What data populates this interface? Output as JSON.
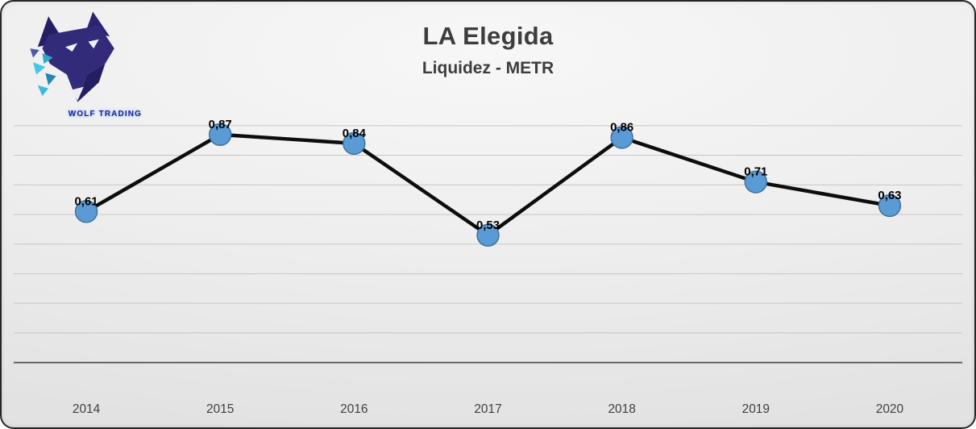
{
  "logo": {
    "brand": "WOLF TRADING"
  },
  "chart_data": {
    "type": "line",
    "title": "LA Elegida",
    "subtitle": "Liquidez - METR",
    "categories": [
      "2014",
      "2015",
      "2016",
      "2017",
      "2018",
      "2019",
      "2020"
    ],
    "series": [
      {
        "name": "Liquidez - METR",
        "values": [
          0.61,
          0.87,
          0.84,
          0.53,
          0.86,
          0.71,
          0.63
        ],
        "point_labels": [
          "0,61",
          "0,87",
          "0,84",
          "0,53",
          "0,86",
          "0,71",
          "0,63"
        ]
      }
    ],
    "xlabel": "",
    "ylabel": "",
    "ylim": [
      0.1,
      0.95
    ],
    "gridlines": {
      "from": 0.2,
      "to": 0.9,
      "step": 0.1,
      "visible": true
    },
    "axis_value": 0.1,
    "legend": "none",
    "decimal_separator": ",",
    "colors": {
      "line": "#0d0d0d",
      "marker_fill": "#5b9bd5",
      "marker_stroke": "#41719c",
      "point_label": "#000000",
      "grid": "#c6c6c6",
      "axis": "#4d4d4d",
      "title": "#3d3d3d",
      "tick": "#404040"
    }
  }
}
